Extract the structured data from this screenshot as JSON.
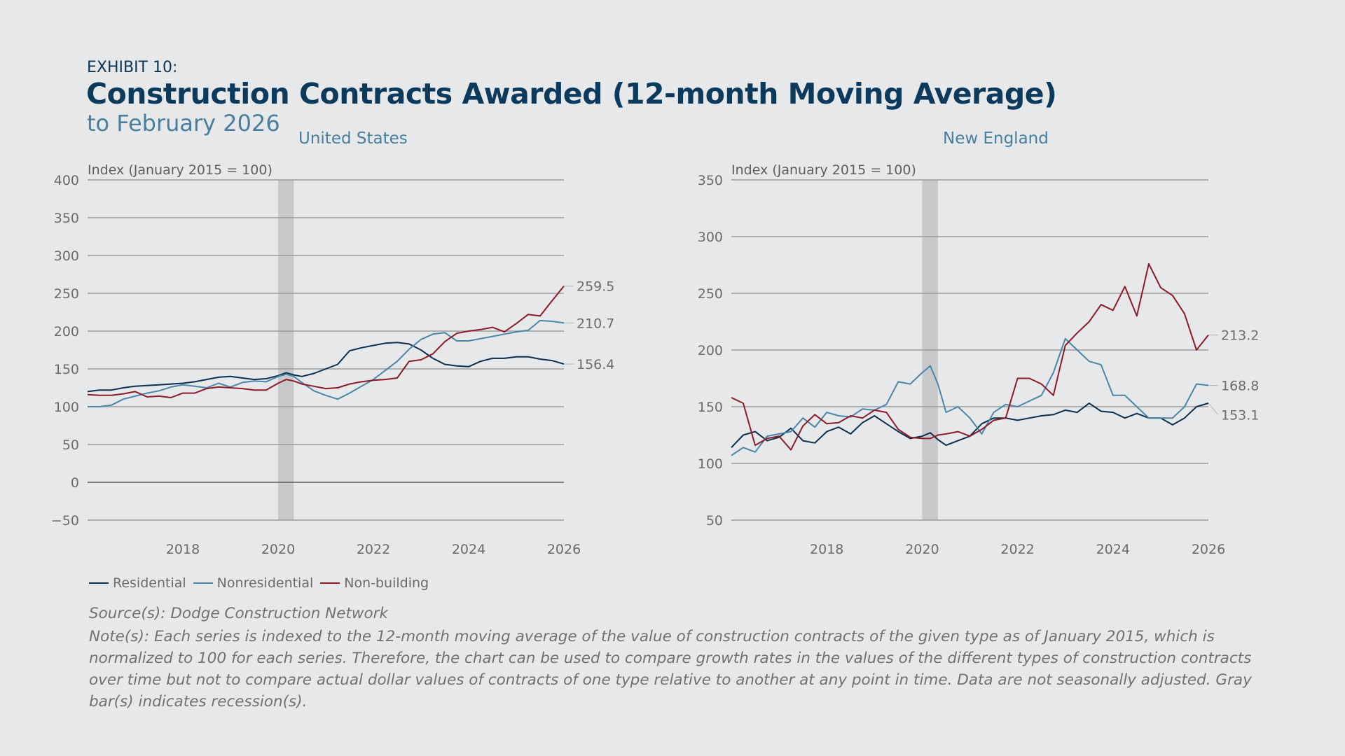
{
  "header": {
    "exhibit": "EXHIBIT 10:",
    "title": "Construction Contracts Awarded (12-month Moving Average)",
    "subtitle": "to February 2026"
  },
  "legend": [
    {
      "label": "Residential",
      "color": "#0d2f4f"
    },
    {
      "label": "Nonresidential",
      "color": "#4a86a6"
    },
    {
      "label": "Non-building",
      "color": "#8b1a2b"
    }
  ],
  "footer": {
    "source": "Source(s): Dodge Construction Network",
    "note": "Note(s): Each series is indexed to the 12-month moving average of the value of construction contracts of the given type as of January 2015, which is normalized to 100 for each series. Therefore, the chart can be used to compare growth rates in the values of the different types of construction contracts over time but not to compare actual dollar values of contracts of one type relative to another at any point in time. Data are not seasonally adjusted. Gray bar(s) indicates recession(s)."
  },
  "chart_data": [
    {
      "type": "line",
      "title": "United States",
      "ylabel": "Index (January 2015 = 100)",
      "xlim": [
        2016.0,
        2026.0
      ],
      "ylim": [
        -50,
        400
      ],
      "yticks": [
        -50,
        0,
        50,
        100,
        150,
        200,
        250,
        300,
        350,
        400
      ],
      "xticks": [
        2018,
        2020,
        2022,
        2024,
        2026
      ],
      "grid": true,
      "recession": [
        2020.0,
        2020.33
      ],
      "x": [
        2016.0,
        2016.25,
        2016.5,
        2016.75,
        2017.0,
        2017.25,
        2017.5,
        2017.75,
        2018.0,
        2018.25,
        2018.5,
        2018.75,
        2019.0,
        2019.25,
        2019.5,
        2019.75,
        2020.0,
        2020.17,
        2020.33,
        2020.5,
        2020.75,
        2021.0,
        2021.25,
        2021.5,
        2021.75,
        2022.0,
        2022.25,
        2022.5,
        2022.75,
        2023.0,
        2023.25,
        2023.5,
        2023.75,
        2024.0,
        2024.25,
        2024.5,
        2024.75,
        2025.0,
        2025.25,
        2025.5,
        2025.75,
        2026.0
      ],
      "series": [
        {
          "name": "Residential",
          "end_label": "156.4",
          "values": [
            120,
            122,
            122,
            125,
            127,
            128,
            129,
            130,
            131,
            133,
            136,
            139,
            140,
            138,
            136,
            137,
            141,
            145,
            142,
            140,
            144,
            150,
            156,
            174,
            178,
            181,
            184,
            185,
            183,
            175,
            164,
            156,
            154,
            153,
            160,
            164,
            164,
            166,
            166,
            163,
            161,
            156.4
          ]
        },
        {
          "name": "Nonresidential",
          "end_label": "210.7",
          "values": [
            100,
            100,
            102,
            110,
            114,
            118,
            121,
            126,
            129,
            127,
            125,
            131,
            126,
            132,
            134,
            133,
            140,
            143,
            140,
            132,
            121,
            115,
            110,
            118,
            127,
            136,
            148,
            160,
            176,
            189,
            196,
            198,
            187,
            187,
            190,
            193,
            196,
            199,
            201,
            214,
            213,
            210.7
          ]
        },
        {
          "name": "Non-building",
          "end_label": "259.5",
          "values": [
            116,
            115,
            115,
            117,
            120,
            113,
            114,
            112,
            118,
            118,
            124,
            126,
            125,
            124,
            122,
            122,
            131,
            136,
            134,
            130,
            127,
            124,
            125,
            130,
            133,
            135,
            136,
            138,
            160,
            162,
            170,
            186,
            197,
            200,
            202,
            205,
            199,
            210,
            222,
            220,
            240,
            259.5
          ]
        }
      ]
    },
    {
      "type": "line",
      "title": "New England",
      "ylabel": "Index (January 2015 = 100)",
      "xlim": [
        2016.0,
        2026.0
      ],
      "ylim": [
        50,
        350
      ],
      "yticks": [
        50,
        100,
        150,
        200,
        250,
        300,
        350
      ],
      "xticks": [
        2018,
        2020,
        2022,
        2024,
        2026
      ],
      "grid": true,
      "recession": [
        2020.0,
        2020.33
      ],
      "x": [
        2016.0,
        2016.25,
        2016.5,
        2016.75,
        2017.0,
        2017.25,
        2017.5,
        2017.75,
        2018.0,
        2018.25,
        2018.5,
        2018.75,
        2019.0,
        2019.25,
        2019.5,
        2019.75,
        2020.0,
        2020.17,
        2020.33,
        2020.5,
        2020.75,
        2021.0,
        2021.25,
        2021.5,
        2021.75,
        2022.0,
        2022.25,
        2022.5,
        2022.75,
        2023.0,
        2023.25,
        2023.5,
        2023.75,
        2024.0,
        2024.25,
        2024.5,
        2024.75,
        2025.0,
        2025.25,
        2025.5,
        2025.75,
        2026.0
      ],
      "series": [
        {
          "name": "Residential",
          "end_label": "153.1",
          "values": [
            114,
            125,
            128,
            120,
            123,
            131,
            120,
            118,
            128,
            132,
            126,
            136,
            142,
            135,
            128,
            122,
            124,
            127,
            121,
            116,
            120,
            124,
            135,
            140,
            140,
            138,
            140,
            142,
            143,
            147,
            145,
            153,
            146,
            145,
            140,
            144,
            140,
            140,
            134,
            140,
            150,
            153.1
          ]
        },
        {
          "name": "Nonresidential",
          "end_label": "168.8",
          "values": [
            107,
            114,
            110,
            124,
            126,
            128,
            140,
            132,
            145,
            142,
            141,
            148,
            147,
            152,
            172,
            170,
            180,
            186,
            170,
            145,
            150,
            140,
            126,
            145,
            152,
            150,
            155,
            160,
            180,
            210,
            200,
            190,
            187,
            160,
            160,
            150,
            140,
            140,
            140,
            150,
            170,
            168.8
          ]
        },
        {
          "name": "Non-building",
          "end_label": "213.2",
          "values": [
            158,
            153,
            116,
            122,
            124,
            112,
            133,
            143,
            135,
            136,
            142,
            140,
            147,
            145,
            130,
            123,
            122,
            122,
            125,
            126,
            128,
            124,
            130,
            138,
            140,
            175,
            175,
            170,
            160,
            204,
            215,
            225,
            240,
            235,
            256,
            230,
            276,
            255,
            248,
            232,
            200,
            213.2
          ]
        }
      ]
    }
  ]
}
